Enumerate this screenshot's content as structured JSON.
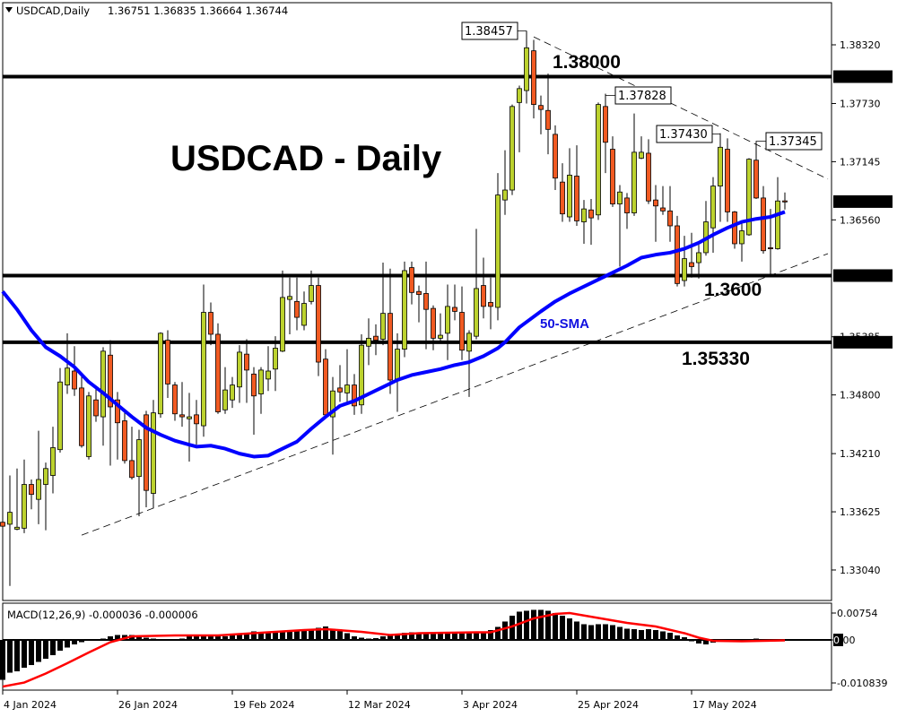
{
  "header": {
    "symbol_label": "USDCAD,Daily",
    "ohlc_text": "1.36751 1.36835 1.36664 1.36744",
    "menu_icon": "triangle-down-icon"
  },
  "annotations": {
    "title": "USDCAD - Daily",
    "level_1380": "1.38000",
    "level_1360": "1.3600",
    "level_13533": "1.35330",
    "sma_label": "50-SMA",
    "high_labels": [
      "1.38457",
      "1.37828",
      "1.37430",
      "1.37345"
    ]
  },
  "colors": {
    "bull": "#bcd22e",
    "bear": "#f15a22",
    "sma": "#0000ff",
    "signal": "#ff0000",
    "histogram": "#000000"
  },
  "chart_data": [
    {
      "type": "candlestick",
      "title": "USDCAD - Daily",
      "y_axis_ticks": [
        "1.38320",
        "1.37730",
        "1.37145",
        "1.36560",
        "1.35385",
        "1.34800",
        "1.34210",
        "1.33625",
        "1.33040"
      ],
      "y_axis_highlighted": [
        "1.38000",
        "1.36744",
        "1.36000",
        "1.35330"
      ],
      "ylim": [
        1.3255,
        1.3885
      ],
      "x_tick_labels": [
        {
          "bar": 0,
          "label": "4 Jan 2024"
        },
        {
          "bar": 16,
          "label": "26 Jan 2024"
        },
        {
          "bar": 32,
          "label": "19 Feb 2024"
        },
        {
          "bar": 48,
          "label": "12 Mar 2024"
        },
        {
          "bar": 64,
          "label": "3 Apr 2024"
        },
        {
          "bar": 80,
          "label": "25 Apr 2024"
        },
        {
          "bar": 96,
          "label": "17 May 2024"
        }
      ],
      "ohlc_order": [
        "open",
        "high",
        "low",
        "close"
      ],
      "candles": [
        [
          1.3352,
          1.3369,
          1.3317,
          1.3348
        ],
        [
          1.335,
          1.3399,
          1.3288,
          1.3362
        ],
        [
          1.3345,
          1.3406,
          1.3344,
          1.3347
        ],
        [
          1.3346,
          1.3415,
          1.3341,
          1.339
        ],
        [
          1.339,
          1.3395,
          1.3365,
          1.338
        ],
        [
          1.3375,
          1.3444,
          1.335,
          1.3395
        ],
        [
          1.339,
          1.3412,
          1.3344,
          1.3406
        ],
        [
          1.3399,
          1.3448,
          1.3381,
          1.3427
        ],
        [
          1.3425,
          1.3507,
          1.3422,
          1.3493
        ],
        [
          1.349,
          1.3542,
          1.3481,
          1.3507
        ],
        [
          1.3504,
          1.3529,
          1.3479,
          1.3486
        ],
        [
          1.3487,
          1.3499,
          1.3427,
          1.3429
        ],
        [
          1.3418,
          1.3483,
          1.3415,
          1.3479
        ],
        [
          1.3475,
          1.3487,
          1.3453,
          1.3459
        ],
        [
          1.3458,
          1.3528,
          1.3429,
          1.3524
        ],
        [
          1.352,
          1.3535,
          1.3409,
          1.3468
        ],
        [
          1.3475,
          1.3483,
          1.3415,
          1.3452
        ],
        [
          1.3454,
          1.3463,
          1.3411,
          1.3414
        ],
        [
          1.3414,
          1.3448,
          1.3395,
          1.3397
        ],
        [
          1.3398,
          1.3445,
          1.3358,
          1.3435
        ],
        [
          1.346,
          1.3464,
          1.3367,
          1.3384
        ],
        [
          1.3381,
          1.3475,
          1.3366,
          1.3462
        ],
        [
          1.3461,
          1.3543,
          1.3457,
          1.3542
        ],
        [
          1.3535,
          1.3545,
          1.3477,
          1.3491
        ],
        [
          1.349,
          1.3493,
          1.3454,
          1.3461
        ],
        [
          1.346,
          1.3493,
          1.3448,
          1.3458
        ],
        [
          1.3456,
          1.3482,
          1.3413,
          1.3458
        ],
        [
          1.346,
          1.3475,
          1.343,
          1.3451
        ],
        [
          1.3449,
          1.3591,
          1.3438,
          1.3563
        ],
        [
          1.3563,
          1.3573,
          1.353,
          1.3541
        ],
        [
          1.3541,
          1.3552,
          1.3461,
          1.3463
        ],
        [
          1.3465,
          1.3508,
          1.3461,
          1.3485
        ],
        [
          1.3475,
          1.3498,
          1.3467,
          1.349
        ],
        [
          1.3488,
          1.353,
          1.3472,
          1.3523
        ],
        [
          1.3521,
          1.3536,
          1.3472,
          1.3505
        ],
        [
          1.3501,
          1.3508,
          1.344,
          1.3479
        ],
        [
          1.3481,
          1.3508,
          1.3461,
          1.3505
        ],
        [
          1.3496,
          1.3529,
          1.3484,
          1.3504
        ],
        [
          1.3506,
          1.3539,
          1.3484,
          1.3527
        ],
        [
          1.3524,
          1.3605,
          1.3523,
          1.3578
        ],
        [
          1.3576,
          1.3598,
          1.3541,
          1.3579
        ],
        [
          1.3574,
          1.3598,
          1.3545,
          1.3558
        ],
        [
          1.355,
          1.3584,
          1.3545,
          1.3572
        ],
        [
          1.3574,
          1.3605,
          1.3571,
          1.359
        ],
        [
          1.359,
          1.3598,
          1.3499,
          1.3513
        ],
        [
          1.3516,
          1.3526,
          1.346,
          1.346
        ],
        [
          1.3458,
          1.3498,
          1.342,
          1.3484
        ],
        [
          1.3487,
          1.351,
          1.3473,
          1.3483
        ],
        [
          1.3482,
          1.3526,
          1.347,
          1.349
        ],
        [
          1.349,
          1.3501,
          1.346,
          1.3469
        ],
        [
          1.347,
          1.3541,
          1.3461,
          1.353
        ],
        [
          1.3529,
          1.3557,
          1.351,
          1.3537
        ],
        [
          1.3539,
          1.3551,
          1.352,
          1.3535
        ],
        [
          1.3536,
          1.3613,
          1.353,
          1.3562
        ],
        [
          1.3562,
          1.3607,
          1.3481,
          1.3495
        ],
        [
          1.3496,
          1.3542,
          1.3463,
          1.3526
        ],
        [
          1.3526,
          1.3614,
          1.3518,
          1.3605
        ],
        [
          1.3608,
          1.3614,
          1.3571,
          1.3583
        ],
        [
          1.3584,
          1.359,
          1.3553,
          1.3581
        ],
        [
          1.3582,
          1.3614,
          1.3526,
          1.3566
        ],
        [
          1.3567,
          1.357,
          1.3525,
          1.3537
        ],
        [
          1.3537,
          1.3562,
          1.3533,
          1.354
        ],
        [
          1.3542,
          1.3591,
          1.3515,
          1.3569
        ],
        [
          1.3568,
          1.3591,
          1.3555,
          1.3564
        ],
        [
          1.3563,
          1.3589,
          1.3515,
          1.3525
        ],
        [
          1.3524,
          1.3545,
          1.3478,
          1.3542
        ],
        [
          1.3539,
          1.3647,
          1.3536,
          1.3587
        ],
        [
          1.359,
          1.3618,
          1.3557,
          1.3569
        ],
        [
          1.3573,
          1.3598,
          1.3546,
          1.3569
        ],
        [
          1.3568,
          1.3703,
          1.3555,
          1.3681
        ],
        [
          1.3676,
          1.3726,
          1.3661,
          1.3686
        ],
        [
          1.3686,
          1.3772,
          1.3681,
          1.377
        ],
        [
          1.3774,
          1.3791,
          1.3724,
          1.3788
        ],
        [
          1.3786,
          1.38457,
          1.3773,
          1.3829
        ],
        [
          1.3826,
          1.3837,
          1.3758,
          1.3772
        ],
        [
          1.3771,
          1.3781,
          1.3742,
          1.3767
        ],
        [
          1.3766,
          1.3803,
          1.3722,
          1.3747
        ],
        [
          1.3742,
          1.3751,
          1.3686,
          1.3698
        ],
        [
          1.3694,
          1.3713,
          1.3654,
          1.3662
        ],
        [
          1.3659,
          1.3728,
          1.3654,
          1.3701
        ],
        [
          1.37,
          1.3731,
          1.365,
          1.3655
        ],
        [
          1.3654,
          1.3676,
          1.3632,
          1.3667
        ],
        [
          1.3666,
          1.3677,
          1.3631,
          1.3658
        ],
        [
          1.3661,
          1.3774,
          1.3656,
          1.3772
        ],
        [
          1.377,
          1.37828,
          1.3703,
          1.3734
        ],
        [
          1.3727,
          1.374,
          1.3669,
          1.3672
        ],
        [
          1.3672,
          1.3691,
          1.3609,
          1.3684
        ],
        [
          1.3678,
          1.3683,
          1.3647,
          1.3663
        ],
        [
          1.3663,
          1.3763,
          1.366,
          1.3724
        ],
        [
          1.3718,
          1.374,
          1.3717,
          1.3724
        ],
        [
          1.3723,
          1.3737,
          1.3672,
          1.3675
        ],
        [
          1.3676,
          1.3691,
          1.3634,
          1.367
        ],
        [
          1.3668,
          1.369,
          1.3661,
          1.3665
        ],
        [
          1.3665,
          1.369,
          1.3634,
          1.365
        ],
        [
          1.365,
          1.366,
          1.3589,
          1.3592
        ],
        [
          1.3595,
          1.364,
          1.3589,
          1.3617
        ],
        [
          1.3613,
          1.3643,
          1.3598,
          1.3609
        ],
        [
          1.3613,
          1.3631,
          1.3597,
          1.3623
        ],
        [
          1.3623,
          1.3675,
          1.362,
          1.3654
        ],
        [
          1.3648,
          1.3699,
          1.3623,
          1.369
        ],
        [
          1.369,
          1.3743,
          1.3654,
          1.3729
        ],
        [
          1.3727,
          1.3738,
          1.3654,
          1.3664
        ],
        [
          1.3664,
          1.3665,
          1.3627,
          1.3632
        ],
        [
          1.3632,
          1.3654,
          1.3614,
          1.3645
        ],
        [
          1.3641,
          1.3718,
          1.364,
          1.3717
        ],
        [
          1.3716,
          1.37345,
          1.3677,
          1.3678
        ],
        [
          1.3678,
          1.369,
          1.3622,
          1.3625
        ],
        [
          1.3628,
          1.3667,
          1.36,
          1.3627
        ],
        [
          1.3627,
          1.3699,
          1.3626,
          1.3675
        ],
        [
          1.36751,
          1.36835,
          1.36664,
          1.36744
        ]
      ],
      "sma50": [
        [
          0,
          1.3584
        ],
        [
          2,
          1.3566
        ],
        [
          4,
          1.3545
        ],
        [
          6,
          1.3528
        ],
        [
          8,
          1.3519
        ],
        [
          10,
          1.3508
        ],
        [
          12,
          1.3493
        ],
        [
          14,
          1.3482
        ],
        [
          16,
          1.347
        ],
        [
          18,
          1.3458
        ],
        [
          20,
          1.3447
        ],
        [
          22,
          1.344
        ],
        [
          24,
          1.3434
        ],
        [
          26,
          1.343
        ],
        [
          27,
          1.3428
        ],
        [
          29,
          1.3429
        ],
        [
          31,
          1.3426
        ],
        [
          33,
          1.3421
        ],
        [
          35,
          1.3418
        ],
        [
          37,
          1.3419
        ],
        [
          39,
          1.3426
        ],
        [
          41,
          1.3433
        ],
        [
          43,
          1.3446
        ],
        [
          45,
          1.3458
        ],
        [
          47,
          1.3469
        ],
        [
          49,
          1.3474
        ],
        [
          51,
          1.3481
        ],
        [
          53,
          1.3488
        ],
        [
          55,
          1.3495
        ],
        [
          57,
          1.35
        ],
        [
          59,
          1.3503
        ],
        [
          61,
          1.3506
        ],
        [
          63,
          1.351
        ],
        [
          65,
          1.3513
        ],
        [
          67,
          1.3519
        ],
        [
          69,
          1.3527
        ],
        [
          70,
          1.3533
        ],
        [
          72,
          1.3548
        ],
        [
          75,
          1.3564
        ],
        [
          77,
          1.3574
        ],
        [
          79,
          1.3582
        ],
        [
          81,
          1.3589
        ],
        [
          83,
          1.3596
        ],
        [
          85,
          1.3603
        ],
        [
          87,
          1.361
        ],
        [
          89,
          1.3618
        ],
        [
          91,
          1.3621
        ],
        [
          93,
          1.3623
        ],
        [
          95,
          1.3627
        ],
        [
          97,
          1.3633
        ],
        [
          99,
          1.3641
        ],
        [
          101,
          1.3648
        ],
        [
          103,
          1.3654
        ],
        [
          105,
          1.3657
        ],
        [
          107,
          1.3659
        ],
        [
          109,
          1.3664
        ]
      ],
      "horizontal_levels": [
        1.38,
        1.36,
        1.3533
      ],
      "trendlines": [
        {
          "style": "dashed",
          "from": [
            11,
            1.3339
          ],
          "to": [
            115,
            1.3622
          ]
        },
        {
          "style": "dashed",
          "from": [
            74,
            1.384
          ],
          "to": [
            115,
            1.3697
          ]
        }
      ],
      "high_markers": [
        [
          73,
          1.38457
        ],
        [
          84,
          1.37828
        ],
        [
          100,
          1.3743
        ],
        [
          105,
          1.37345
        ]
      ]
    },
    {
      "type": "bar+line",
      "title": "MACD(12,26,9) -0.000036 -0.000006",
      "y_axis_ticks": [
        "0.00754",
        "0.00",
        "-0.010839"
      ],
      "ylim": [
        -0.010839,
        0.00754
      ],
      "histogram": [
        -0.0089,
        -0.0073,
        -0.007,
        -0.0062,
        -0.0056,
        -0.0049,
        -0.0042,
        -0.0034,
        -0.0024,
        -0.0017,
        -0.001,
        -0.0005,
        0.0,
        0.0001,
        0.0003,
        0.0008,
        0.0011,
        0.0011,
        0.0011,
        0.0006,
        0.0005,
        0.0003,
        0.0001,
        -0.0001,
        0.0001,
        0.0003,
        0.0008,
        0.0011,
        0.001,
        0.001,
        0.0008,
        0.0008,
        0.001,
        0.0013,
        0.0016,
        0.0019,
        0.0017,
        0.0017,
        0.0018,
        0.0018,
        0.0019,
        0.002,
        0.0022,
        0.0024,
        0.0027,
        0.003,
        0.0025,
        0.002,
        0.0015,
        0.0008,
        0.0005,
        0.0003,
        0.0004,
        0.0008,
        0.0011,
        0.0014,
        0.0016,
        0.0017,
        0.0016,
        0.0015,
        0.0015,
        0.0015,
        0.0015,
        0.0015,
        0.0015,
        0.0015,
        0.0016,
        0.0019,
        0.0022,
        0.0029,
        0.0041,
        0.0054,
        0.0063,
        0.0065,
        0.0067,
        0.0067,
        0.0065,
        0.006,
        0.0054,
        0.0048,
        0.0041,
        0.0035,
        0.0033,
        0.0035,
        0.0035,
        0.0033,
        0.0029,
        0.0025,
        0.0024,
        0.0022,
        0.0024,
        0.0022,
        0.0019,
        0.0016,
        0.001,
        0.0006,
        -0.0003,
        -0.0008,
        -0.001,
        -0.0006,
        -0.0003,
        0.0,
        0.0,
        -0.0002,
        0.0,
        0.0003,
        0.0,
        -0.0003,
        -0.0001,
        0.0
      ],
      "signal": [
        [
          0,
          -0.0104
        ],
        [
          3,
          -0.0095
        ],
        [
          6,
          -0.0075
        ],
        [
          9,
          -0.0052
        ],
        [
          12,
          -0.0028
        ],
        [
          15,
          -0.0005
        ],
        [
          18,
          0.0008
        ],
        [
          24,
          0.001
        ],
        [
          30,
          0.001
        ],
        [
          36,
          0.0016
        ],
        [
          42,
          0.0022
        ],
        [
          45,
          0.0024
        ],
        [
          50,
          0.0018
        ],
        [
          54,
          0.0011
        ],
        [
          58,
          0.0015
        ],
        [
          62,
          0.0016
        ],
        [
          66,
          0.0017
        ],
        [
          68,
          0.0017
        ],
        [
          71,
          0.003
        ],
        [
          74,
          0.0048
        ],
        [
          77,
          0.0058
        ],
        [
          79,
          0.006
        ],
        [
          83,
          0.0049
        ],
        [
          87,
          0.0038
        ],
        [
          91,
          0.003
        ],
        [
          95,
          0.0015
        ],
        [
          97,
          0.0005
        ],
        [
          99,
          -0.0002
        ],
        [
          103,
          -0.0003
        ],
        [
          109,
          -0.0001
        ]
      ]
    }
  ]
}
